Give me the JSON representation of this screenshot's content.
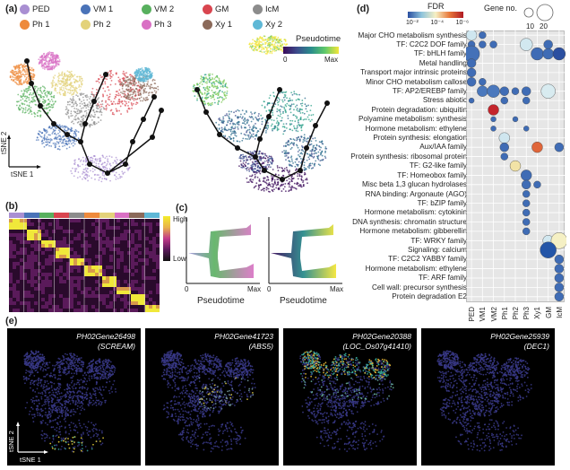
{
  "panels": {
    "a": "(a)",
    "b": "(b)",
    "c": "(c)",
    "d": "(d)",
    "e": "(e)"
  },
  "legend_a": [
    {
      "label": "PED",
      "color": "#a98fd2"
    },
    {
      "label": "VM 1",
      "color": "#4a73b8"
    },
    {
      "label": "VM 2",
      "color": "#58b05e"
    },
    {
      "label": "GM",
      "color": "#d9454f"
    },
    {
      "label": "IcM",
      "color": "#8c8c8c"
    },
    {
      "label": "Ph 1",
      "color": "#ee8a3c"
    },
    {
      "label": "Ph 2",
      "color": "#e3d27a"
    },
    {
      "label": "Ph 3",
      "color": "#d970c4"
    },
    {
      "label": "Xy 1",
      "color": "#8b6a5a"
    },
    {
      "label": "Xy 2",
      "color": "#5fb8d6"
    }
  ],
  "tsne": {
    "axis1": "tSNE 1",
    "axis2": "tSNE 2"
  },
  "pseudotime": {
    "title": "Pseudotime",
    "min": "0",
    "max": "Max"
  },
  "heatmap": {
    "high": "High",
    "low": "Low"
  },
  "panel_c": {
    "xlabel": "Pseudotime",
    "min": "0",
    "max": "Max"
  },
  "panel_d": {
    "fdr_title": "FDR",
    "fdr_ticks": [
      "10⁻²",
      "10⁻⁴",
      "10⁻⁶"
    ],
    "gene_no_title": "Gene no.",
    "gene_no_ticks": [
      "10",
      "20"
    ],
    "clusters": [
      "PED",
      "VM1",
      "VM2",
      "Ph1",
      "Ph2",
      "Ph3",
      "Xy1",
      "GM",
      "IcM"
    ],
    "gene_sets": [
      "Major CHO metabolism synthesis",
      "TF: C2C2 DOF family",
      "TF: bHLH family",
      "Metal handling",
      "Transport major intrinsic proteins",
      "Minor CHO metabolism callose",
      "TF: AP2/EREBP family",
      "Stress abiotic",
      "Protein degradation: ubiquitin",
      "Polyamine metabolism: synthesis",
      "Hormone metabolism: ethylene",
      "Protein synthesis: elongation",
      "Aux/IAA family",
      "Protein synthesis: ribosomal protein",
      "TF: G2-like family",
      "TF: Homeobox family",
      "Misc beta 1,3 glucan hydrolases",
      "RNA binding: Argonaute (AGO)",
      "TF: bZIP family",
      "Hormone metabolism: cytokinin",
      "DNA synthesis: chromatin structure",
      "Hormone metabolism: gibberellin",
      "TF: WRKY family",
      "Signaling: calcium",
      "TF: C2C2 YABBY family",
      "Hormone metabolism: ethylene",
      "TF: ARF family",
      "Cell wall: precursor synthesis",
      "Protein degradation E2"
    ],
    "dots": [
      [
        0,
        0,
        6,
        "#cfe6ef"
      ],
      [
        0,
        1,
        4,
        "#3f6cb5"
      ],
      [
        1,
        0,
        4,
        "#3f6cb5"
      ],
      [
        1,
        1,
        4,
        "#3f6cb5"
      ],
      [
        1,
        2,
        4,
        "#3f6cb5"
      ],
      [
        1,
        5,
        7,
        "#d2e8f0"
      ],
      [
        1,
        7,
        5,
        "#3f6cb5"
      ],
      [
        2,
        0,
        9,
        "#4471b8"
      ],
      [
        2,
        6,
        7,
        "#3f6cb5"
      ],
      [
        2,
        7,
        6,
        "#3f6cb5"
      ],
      [
        2,
        8,
        7,
        "#2b4fa0"
      ],
      [
        3,
        0,
        5,
        "#3f6cb5"
      ],
      [
        4,
        0,
        5,
        "#3f6cb5"
      ],
      [
        5,
        0,
        5,
        "#3f6cb5"
      ],
      [
        5,
        1,
        4,
        "#3f6cb5"
      ],
      [
        6,
        1,
        6,
        "#4a78bd"
      ],
      [
        6,
        2,
        7,
        "#4a78bd"
      ],
      [
        6,
        3,
        5,
        "#3f6cb5"
      ],
      [
        6,
        4,
        4,
        "#3f6cb5"
      ],
      [
        6,
        5,
        5,
        "#3f6cb5"
      ],
      [
        6,
        7,
        8,
        "#d8ebf0"
      ],
      [
        7,
        0,
        3,
        "#3f6cb5"
      ],
      [
        7,
        3,
        4,
        "#3f6cb5"
      ],
      [
        7,
        5,
        4,
        "#3f6cb5"
      ],
      [
        8,
        2,
        6,
        "#c4252c"
      ],
      [
        9,
        2,
        3,
        "#3f6cb5"
      ],
      [
        9,
        4,
        3,
        "#3f6cb5"
      ],
      [
        10,
        2,
        3,
        "#3f6cb5"
      ],
      [
        10,
        5,
        3,
        "#3f6cb5"
      ],
      [
        11,
        3,
        6,
        "#cfe6ef"
      ],
      [
        12,
        3,
        5,
        "#3f6cb5"
      ],
      [
        12,
        6,
        6,
        "#e0663a"
      ],
      [
        12,
        8,
        5,
        "#3f6cb5"
      ],
      [
        13,
        3,
        4,
        "#3f6cb5"
      ],
      [
        14,
        4,
        6,
        "#f2e3a6"
      ],
      [
        15,
        5,
        6,
        "#3f6cb5"
      ],
      [
        16,
        5,
        5,
        "#3f6cb5"
      ],
      [
        16,
        6,
        4,
        "#3f6cb5"
      ],
      [
        17,
        5,
        4,
        "#3f6cb5"
      ],
      [
        18,
        5,
        4,
        "#3f6cb5"
      ],
      [
        19,
        5,
        4,
        "#3f6cb5"
      ],
      [
        20,
        5,
        4,
        "#3f6cb5"
      ],
      [
        21,
        5,
        4,
        "#3f6cb5"
      ],
      [
        22,
        7,
        6,
        "#d2e8f0"
      ],
      [
        22,
        8,
        9,
        "#f5f0c4"
      ],
      [
        23,
        7,
        9,
        "#2456a8"
      ],
      [
        24,
        8,
        5,
        "#3f6cb5"
      ],
      [
        25,
        8,
        5,
        "#3f6cb5"
      ],
      [
        26,
        8,
        5,
        "#3f6cb5"
      ],
      [
        27,
        8,
        5,
        "#3f6cb5"
      ],
      [
        28,
        8,
        5,
        "#3f6cb5"
      ]
    ]
  },
  "panel_e": [
    {
      "gene": "PH02Gene26498",
      "alias": "(SCREAM)"
    },
    {
      "gene": "PH02Gene41723",
      "alias": "(ABS5)"
    },
    {
      "gene": "PH02Gene20388",
      "alias": "(LOC_Os07g41410)"
    },
    {
      "gene": "PH02Gene25939",
      "alias": "(DEC1)"
    }
  ]
}
